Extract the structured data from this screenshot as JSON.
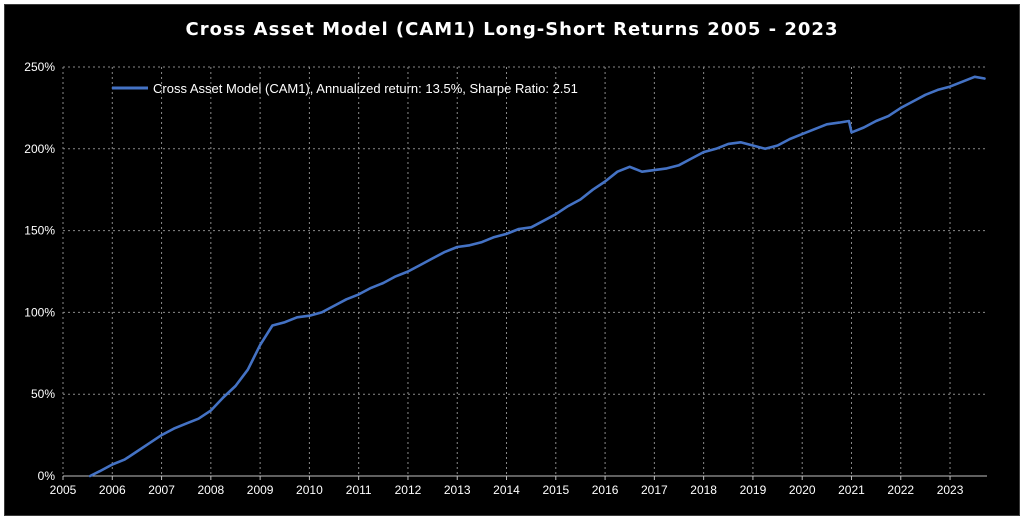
{
  "chart_data": {
    "type": "line",
    "title": "Cross Asset Model (CAM1) Long-Short Returns 2005 - 2023",
    "xlabel": "",
    "ylabel": "",
    "xlim": [
      2005,
      2023.75
    ],
    "ylim": [
      0,
      250
    ],
    "x_ticks": [
      "2005",
      "2006",
      "2007",
      "2008",
      "2009",
      "2010",
      "2011",
      "2012",
      "2013",
      "2014",
      "2015",
      "2016",
      "2017",
      "2018",
      "2019",
      "2020",
      "2021",
      "2022",
      "2023"
    ],
    "y_ticks": [
      "0%",
      "50%",
      "100%",
      "150%",
      "200%",
      "250%"
    ],
    "grid": true,
    "legend_position": "top-left",
    "series": [
      {
        "name": "Cross Asset Model (CAM1), Annualized return: 13.5%, Sharpe Ratio: 2.51",
        "color": "#4472C4",
        "x": [
          2005.55,
          2005.75,
          2006.0,
          2006.25,
          2006.5,
          2006.75,
          2007.0,
          2007.25,
          2007.5,
          2007.75,
          2008.0,
          2008.25,
          2008.5,
          2008.75,
          2009.0,
          2009.25,
          2009.5,
          2009.75,
          2010.0,
          2010.25,
          2010.5,
          2010.75,
          2011.0,
          2011.25,
          2011.5,
          2011.75,
          2012.0,
          2012.25,
          2012.5,
          2012.75,
          2013.0,
          2013.25,
          2013.5,
          2013.75,
          2014.0,
          2014.25,
          2014.5,
          2014.75,
          2015.0,
          2015.25,
          2015.5,
          2015.75,
          2016.0,
          2016.25,
          2016.5,
          2016.75,
          2017.0,
          2017.25,
          2017.5,
          2017.75,
          2018.0,
          2018.25,
          2018.5,
          2018.75,
          2019.0,
          2019.25,
          2019.5,
          2019.75,
          2020.0,
          2020.25,
          2020.5,
          2020.75,
          2020.95,
          2021.0,
          2021.25,
          2021.5,
          2021.75,
          2022.0,
          2022.25,
          2022.5,
          2022.75,
          2023.0,
          2023.25,
          2023.5,
          2023.7
        ],
        "values": [
          0,
          3,
          7,
          10,
          15,
          20,
          25,
          29,
          32,
          35,
          40,
          48,
          55,
          65,
          80,
          92,
          94,
          97,
          98,
          100,
          104,
          108,
          111,
          115,
          118,
          122,
          125,
          129,
          133,
          137,
          140,
          141,
          143,
          146,
          148,
          151,
          152,
          156,
          160,
          165,
          169,
          175,
          180,
          186,
          189,
          186,
          187,
          188,
          190,
          194,
          198,
          200,
          203,
          204,
          202,
          200,
          202,
          206,
          209,
          212,
          215,
          216,
          217,
          210,
          213,
          217,
          220,
          225,
          229,
          233,
          236,
          238,
          241,
          244,
          243
        ]
      }
    ]
  }
}
